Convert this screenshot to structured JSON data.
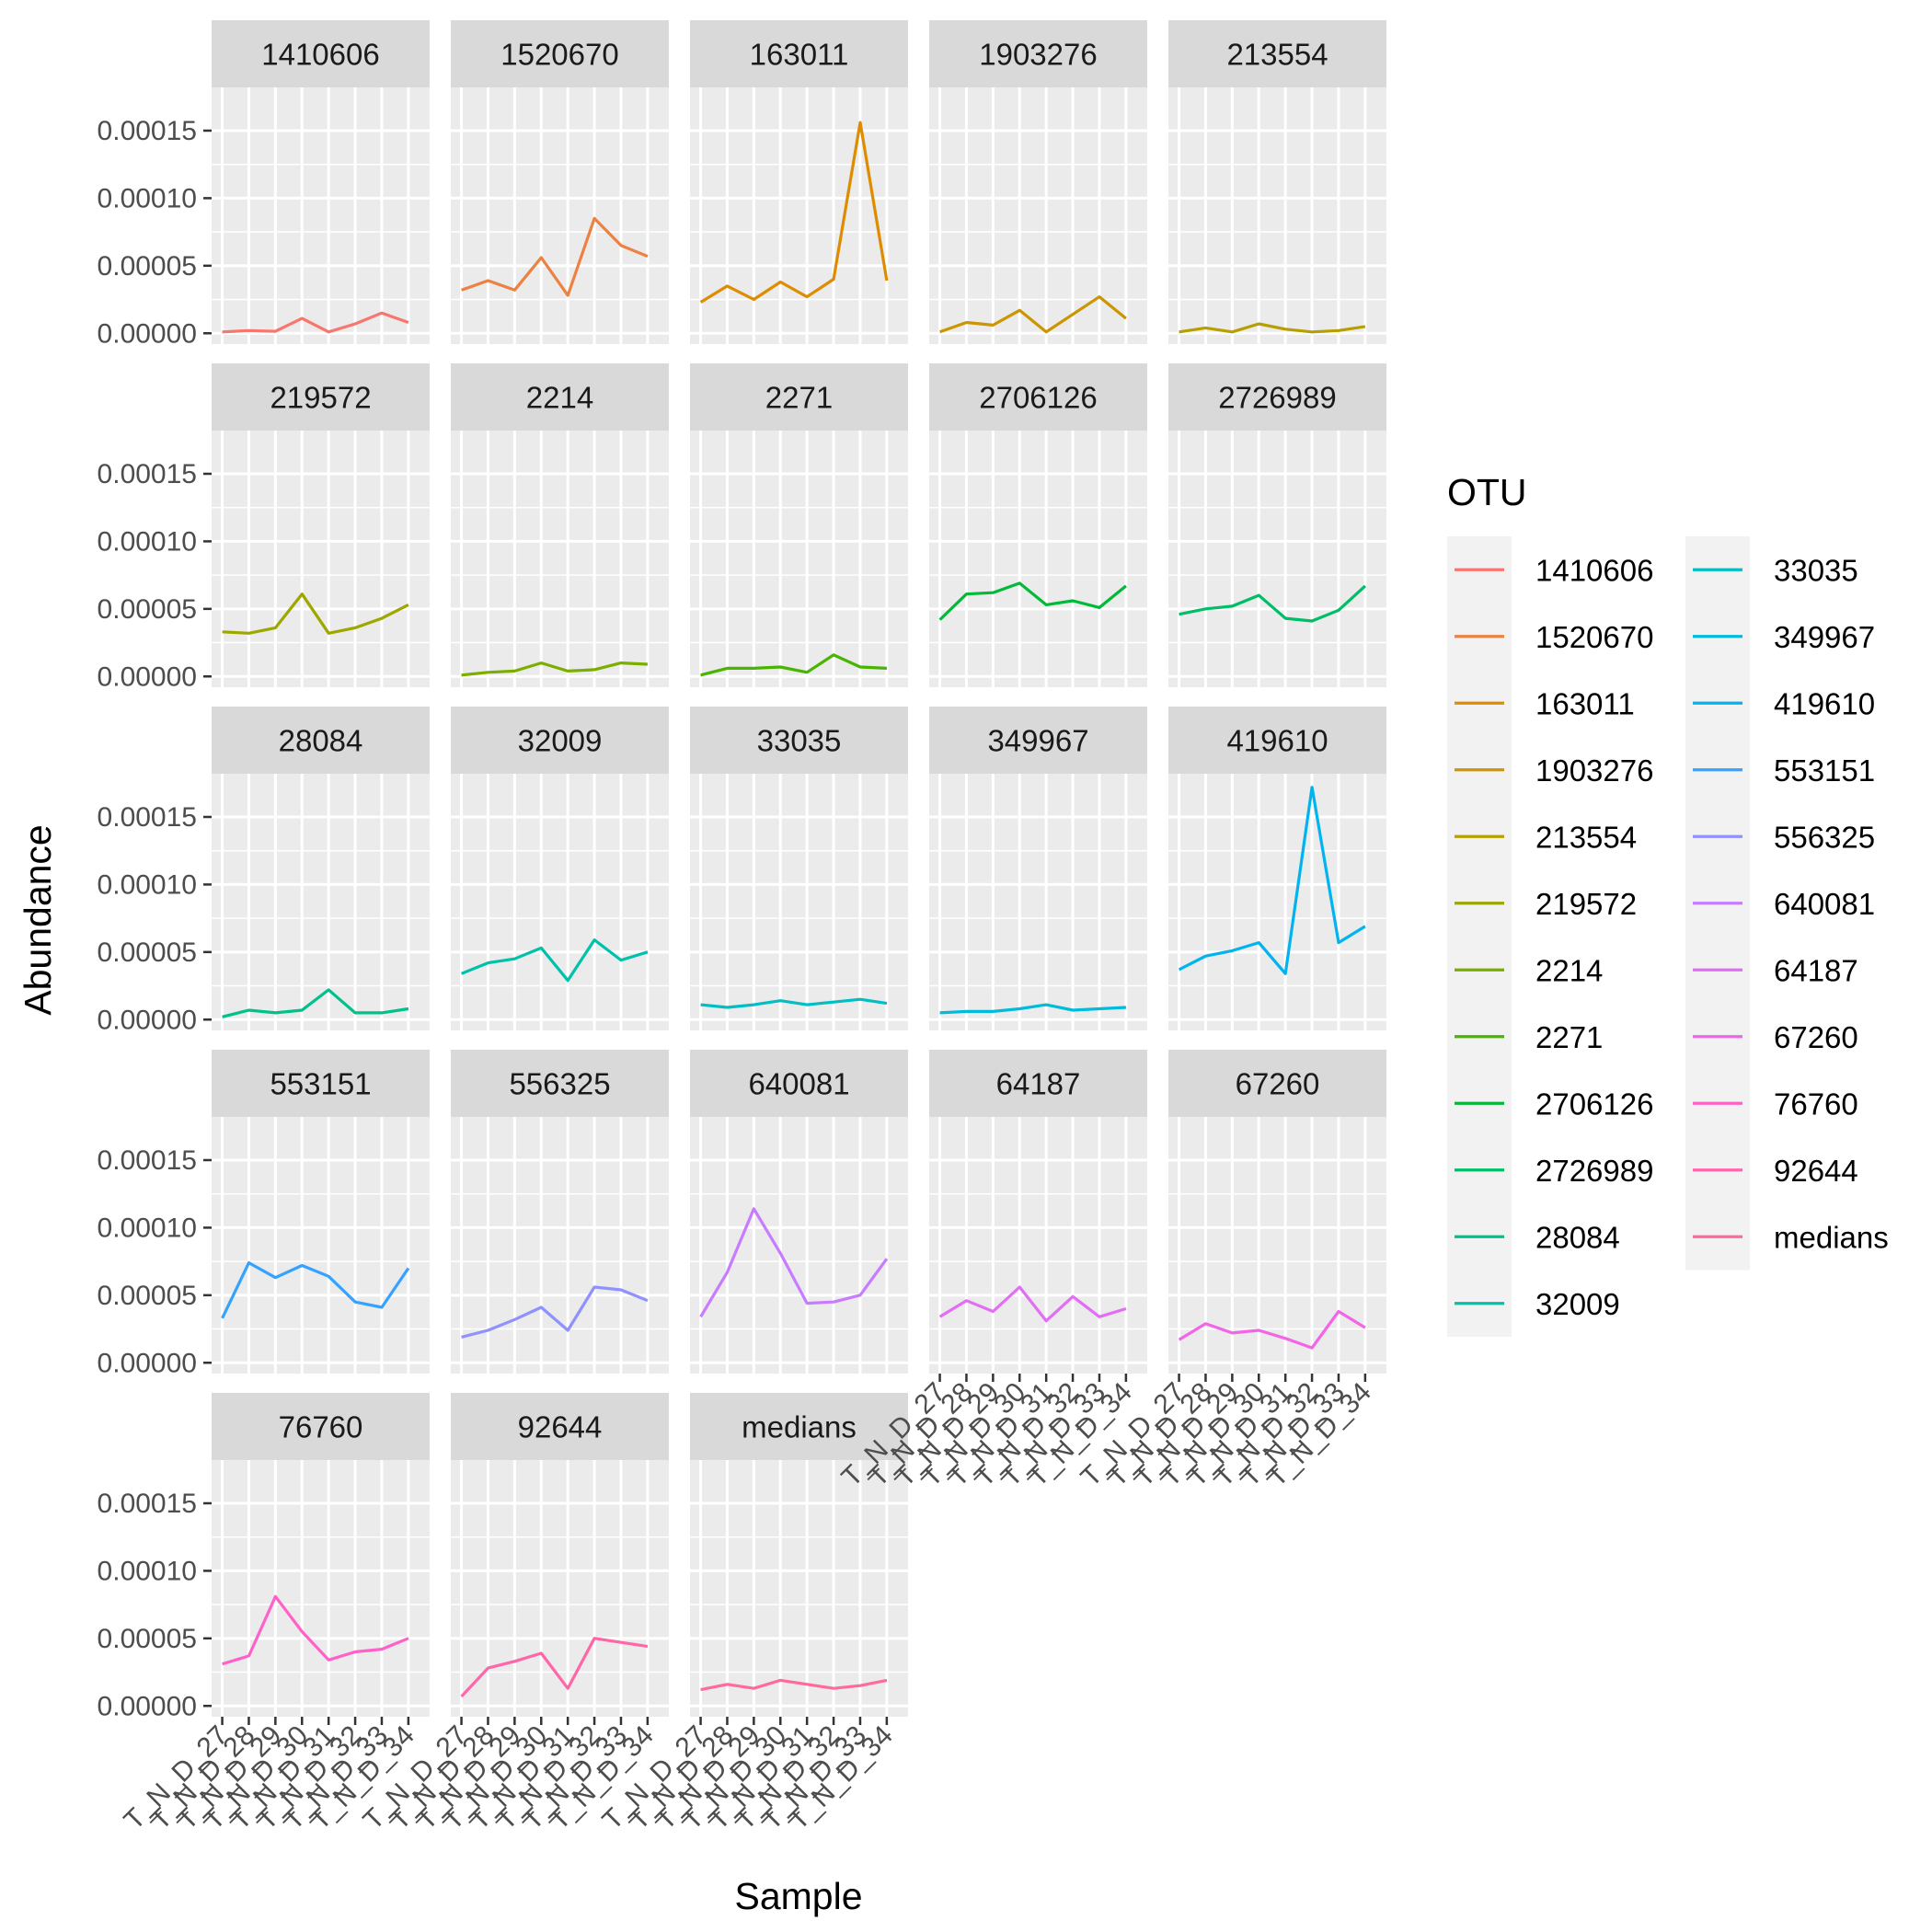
{
  "chart_data": {
    "type": "line",
    "xlabel": "Sample",
    "ylabel": "Abundance",
    "x": [
      "T_N_D_27",
      "T_N_D_28",
      "T_N_D_29",
      "T_N_D_30",
      "T_N_D_31",
      "T_N_D_32",
      "T_N_D_33",
      "T_N_D_34"
    ],
    "ylim": [
      -8e-06,
      0.000182
    ],
    "yticks": [
      0,
      5e-05,
      0.0001,
      0.00015
    ],
    "ytick_labels": [
      "0.00000",
      "0.00005",
      "0.00010",
      "0.00015"
    ],
    "grid": true,
    "legend": {
      "title": "OTU",
      "position": "right"
    },
    "panels": [
      {
        "label": "1410606",
        "color": "#F8766D",
        "values": [
          1e-06,
          2e-06,
          1.5e-06,
          1.1e-05,
          1e-06,
          7e-06,
          1.5e-05,
          8e-06
        ]
      },
      {
        "label": "1520670",
        "color": "#ED8141",
        "values": [
          3.2e-05,
          3.9e-05,
          3.2e-05,
          5.6e-05,
          2.8e-05,
          8.5e-05,
          6.5e-05,
          5.7e-05
        ]
      },
      {
        "label": "163011",
        "color": "#DE8C00",
        "values": [
          2.3e-05,
          3.5e-05,
          2.5e-05,
          3.8e-05,
          2.7e-05,
          4e-05,
          0.000156,
          3.9e-05
        ]
      },
      {
        "label": "1903276",
        "color": "#CB9600",
        "values": [
          1e-06,
          8e-06,
          6e-06,
          1.7e-05,
          1e-06,
          1.4e-05,
          2.7e-05,
          1.1e-05
        ]
      },
      {
        "label": "213554",
        "color": "#B79F00",
        "values": [
          1e-06,
          4e-06,
          1e-06,
          7e-06,
          3e-06,
          1e-06,
          2e-06,
          5e-06
        ]
      },
      {
        "label": "219572",
        "color": "#9DA700",
        "values": [
          3.3e-05,
          3.2e-05,
          3.6e-05,
          6.1e-05,
          3.2e-05,
          3.6e-05,
          4.3e-05,
          5.3e-05
        ]
      },
      {
        "label": "2214",
        "color": "#7CAE00",
        "values": [
          1e-06,
          3e-06,
          4e-06,
          1e-05,
          4e-06,
          5e-06,
          1e-05,
          9e-06
        ]
      },
      {
        "label": "2271",
        "color": "#49B500",
        "values": [
          1e-06,
          6e-06,
          6e-06,
          7e-06,
          3e-06,
          1.6e-05,
          7e-06,
          6e-06
        ]
      },
      {
        "label": "2706126",
        "color": "#00BA38",
        "values": [
          4.2e-05,
          6.1e-05,
          6.2e-05,
          6.9e-05,
          5.3e-05,
          5.6e-05,
          5.1e-05,
          6.7e-05
        ]
      },
      {
        "label": "2726989",
        "color": "#00BE67",
        "values": [
          4.6e-05,
          5e-05,
          5.2e-05,
          6e-05,
          4.3e-05,
          4.1e-05,
          4.9e-05,
          6.7e-05
        ]
      },
      {
        "label": "28084",
        "color": "#00C08B",
        "values": [
          2e-06,
          7e-06,
          5e-06,
          7e-06,
          2.2e-05,
          5e-06,
          5e-06,
          8e-06
        ]
      },
      {
        "label": "32009",
        "color": "#00C1A9",
        "values": [
          3.4e-05,
          4.2e-05,
          4.5e-05,
          5.3e-05,
          2.9e-05,
          5.9e-05,
          4.4e-05,
          5e-05
        ]
      },
      {
        "label": "33035",
        "color": "#00BFC4",
        "values": [
          1.1e-05,
          9e-06,
          1.1e-05,
          1.4e-05,
          1.1e-05,
          1.3e-05,
          1.5e-05,
          1.2e-05
        ]
      },
      {
        "label": "349967",
        "color": "#00BBDC",
        "values": [
          5e-06,
          6e-06,
          6e-06,
          8e-06,
          1.1e-05,
          7e-06,
          8e-06,
          9e-06
        ]
      },
      {
        "label": "419610",
        "color": "#00B4EF",
        "values": [
          3.7e-05,
          4.7e-05,
          5.1e-05,
          5.7e-05,
          3.4e-05,
          0.000172,
          5.7e-05,
          6.9e-05
        ]
      },
      {
        "label": "553151",
        "color": "#35A2FF",
        "values": [
          3.3e-05,
          7.4e-05,
          6.3e-05,
          7.2e-05,
          6.4e-05,
          4.5e-05,
          4.1e-05,
          7e-05
        ]
      },
      {
        "label": "556325",
        "color": "#8F91FF",
        "values": [
          1.9e-05,
          2.4e-05,
          3.2e-05,
          4.1e-05,
          2.4e-05,
          5.6e-05,
          5.4e-05,
          4.6e-05
        ]
      },
      {
        "label": "640081",
        "color": "#C77CFF",
        "values": [
          3.4e-05,
          6.7e-05,
          0.000114,
          8.1e-05,
          4.4e-05,
          4.5e-05,
          5e-05,
          7.7e-05
        ]
      },
      {
        "label": "64187",
        "color": "#E36EF6",
        "values": [
          3.4e-05,
          4.6e-05,
          3.8e-05,
          5.6e-05,
          3.1e-05,
          4.9e-05,
          3.4e-05,
          4e-05
        ]
      },
      {
        "label": "67260",
        "color": "#F265E7",
        "values": [
          1.7e-05,
          2.9e-05,
          2.2e-05,
          2.4e-05,
          1.8e-05,
          1.1e-05,
          3.8e-05,
          2.6e-05
        ]
      },
      {
        "label": "76760",
        "color": "#FF61C9",
        "values": [
          3.1e-05,
          3.7e-05,
          8.1e-05,
          5.5e-05,
          3.4e-05,
          4e-05,
          4.2e-05,
          5e-05
        ]
      },
      {
        "label": "92644",
        "color": "#FF66A8",
        "values": [
          7e-06,
          2.8e-05,
          3.3e-05,
          3.9e-05,
          1.3e-05,
          5e-05,
          4.7e-05,
          4.4e-05
        ]
      },
      {
        "label": "medians",
        "color": "#FF6A98",
        "values": [
          1.2e-05,
          1.6e-05,
          1.3e-05,
          1.9e-05,
          1.6e-05,
          1.3e-05,
          1.5e-05,
          1.9e-05
        ]
      }
    ]
  }
}
